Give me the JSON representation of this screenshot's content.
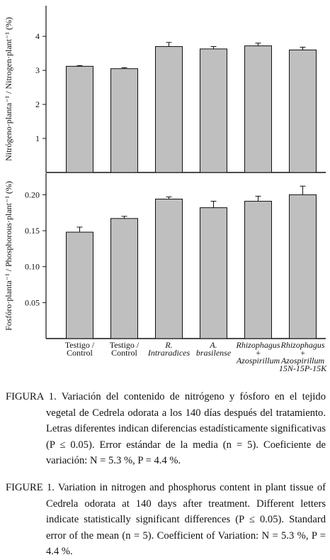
{
  "chart_data": [
    {
      "type": "bar",
      "y_label": "Nitrógeno·planta⁻¹ / Nitrogen·plant⁻¹ (%)",
      "values": [
        3.12,
        3.05,
        3.7,
        3.63,
        3.72,
        3.6
      ],
      "errors": [
        0.02,
        0.03,
        0.12,
        0.07,
        0.08,
        0.08
      ],
      "color": "#bfbfbf",
      "ylim": [
        0,
        4.9
      ],
      "yticks": [
        1,
        2,
        3,
        4
      ]
    },
    {
      "type": "bar",
      "y_label": "Fosfóro·planta⁻¹ / Phosphorous·plant⁻¹ (%)",
      "categories": [
        "Testigo /\nControl",
        "Testigo /\nControl",
        "R.\nIntraradices",
        "A.\nbrasilense",
        "Rhizophagus\n+\nAzospirillum",
        "Rhizophagus\n+\nAzospirillum\n15N-15P-15K"
      ],
      "values": [
        0.148,
        0.167,
        0.194,
        0.182,
        0.191,
        0.2
      ],
      "errors": [
        0.007,
        0.003,
        0.003,
        0.009,
        0.007,
        0.012
      ],
      "color": "#bfbfbf",
      "ylim": [
        0,
        0.23
      ],
      "yticks": [
        0.05,
        {
          "value": 0.1,
          "label": "0.10"
        },
        0.15,
        {
          "value": 0.2,
          "label": "0.20"
        }
      ]
    }
  ],
  "captions": {
    "es": {
      "label": "FIGURA 1.",
      "text": "Variación del contenido de nitrógeno y fósforo en el tejido vegetal de Cedrela odorata a los 140 días después del tratamiento. Letras diferentes indican diferencias estadísticamente significativas (P ≤ 0.05). Error estándar de la media (n = 5). Coeficiente de variación: N = 5.3 %, P = 4.4 %."
    },
    "en": {
      "label": "FIGURE 1.",
      "text": "Variation in nitrogen and phosphorus content in plant tissue of Cedrela odorata at 140 days after treatment. Different letters indicate statistically significant differences (P ≤ 0.05). Standard error of the mean (n = 5). Coefficient of Variation: N = 5.3 %, P = 4.4 %."
    }
  }
}
